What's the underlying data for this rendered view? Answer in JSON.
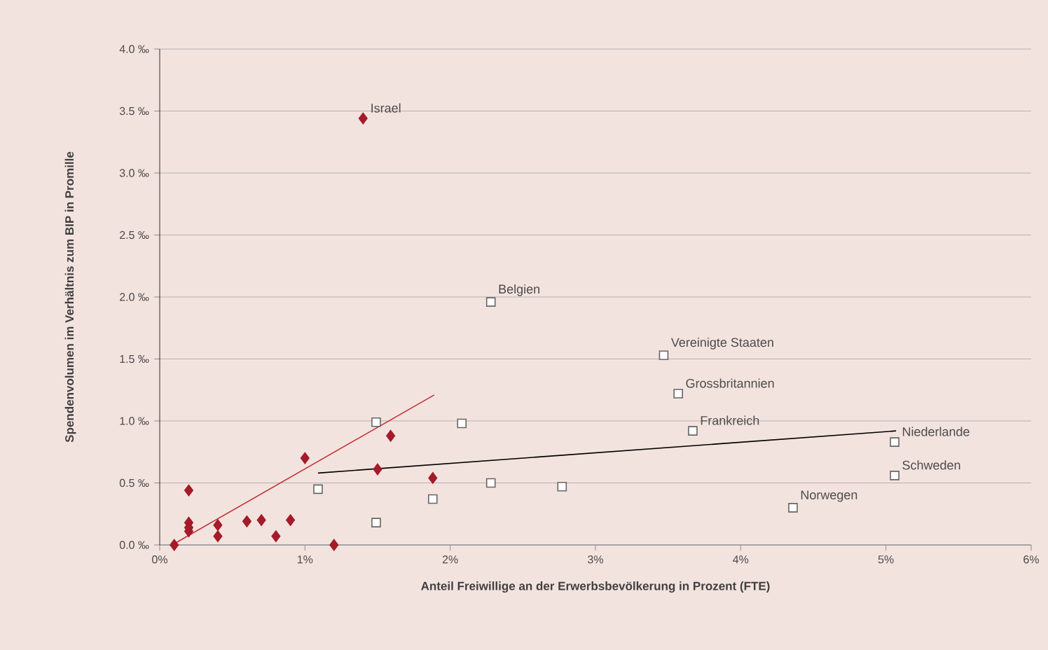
{
  "chart_data": {
    "type": "scatter",
    "xlabel": "Anteil Freiwillige an der Erwerbsbevölkerung in Prozent (FTE)",
    "ylabel": "Spendenvolumen im Verhältnis zum BIP in Promille",
    "xlim": [
      0,
      6
    ],
    "ylim": [
      0,
      4
    ],
    "xticks": [
      {
        "value": 0,
        "label": "0%"
      },
      {
        "value": 1,
        "label": "1%"
      },
      {
        "value": 2,
        "label": "2%"
      },
      {
        "value": 3,
        "label": "3%"
      },
      {
        "value": 4,
        "label": "4%"
      },
      {
        "value": 5,
        "label": "5%"
      },
      {
        "value": 6,
        "label": "6%"
      }
    ],
    "yticks": [
      {
        "value": 0,
        "label": "0.0 ‰"
      },
      {
        "value": 0.5,
        "label": "0.5 ‰"
      },
      {
        "value": 1,
        "label": "1.0 ‰"
      },
      {
        "value": 1.5,
        "label": "1.5 ‰"
      },
      {
        "value": 2,
        "label": "2.0 ‰"
      },
      {
        "value": 2.5,
        "label": "2.5 ‰"
      },
      {
        "value": 3,
        "label": "3.0 ‰"
      },
      {
        "value": 3.5,
        "label": "3.5 ‰"
      },
      {
        "value": 4,
        "label": "4.0 ‰"
      }
    ],
    "grid": "y",
    "series": [
      {
        "marker": "diamond",
        "color": "#a31c2a",
        "x": [
          0.1,
          0.2,
          0.2,
          0.2,
          0.2,
          0.4,
          0.4,
          0.6,
          0.7,
          0.8,
          0.9,
          1.0,
          1.2,
          1.4,
          1.5,
          1.59,
          1.88
        ],
        "values": [
          0.0,
          0.44,
          0.18,
          0.14,
          0.11,
          0.16,
          0.07,
          0.19,
          0.2,
          0.07,
          0.2,
          0.7,
          0.0,
          3.44,
          0.61,
          0.88,
          0.54
        ]
      },
      {
        "marker": "square",
        "color": "#ffffff",
        "x": [
          1.09,
          1.49,
          1.49,
          1.88,
          2.08,
          2.28,
          2.28,
          2.77,
          3.47,
          3.57,
          3.67,
          4.36,
          5.06,
          5.06
        ],
        "values": [
          0.45,
          0.99,
          0.18,
          0.37,
          0.98,
          1.96,
          0.5,
          0.47,
          1.53,
          1.22,
          0.92,
          0.3,
          0.83,
          0.56
        ]
      },
      {
        "type": "line",
        "marker": "none",
        "color": "#c0303a",
        "x": [
          0.1,
          1.89
        ],
        "values": [
          0.01,
          1.21
        ]
      },
      {
        "type": "line",
        "marker": "none",
        "color": "#000000",
        "x": [
          1.09,
          5.07
        ],
        "values": [
          0.58,
          0.92
        ]
      }
    ],
    "annotations": [
      {
        "text": "Israel",
        "x": 1.4,
        "y": 3.44
      },
      {
        "text": "Belgien",
        "x": 2.28,
        "y": 1.96
      },
      {
        "text": "Vereinigte Staaten",
        "x": 3.47,
        "y": 1.53
      },
      {
        "text": "Grossbritannien",
        "x": 3.57,
        "y": 1.22
      },
      {
        "text": "Frankreich",
        "x": 3.67,
        "y": 0.92
      },
      {
        "text": "Niederlande",
        "x": 5.06,
        "y": 0.83
      },
      {
        "text": "Schweden",
        "x": 5.06,
        "y": 0.56
      },
      {
        "text": "Norwegen",
        "x": 4.36,
        "y": 0.3
      }
    ]
  }
}
